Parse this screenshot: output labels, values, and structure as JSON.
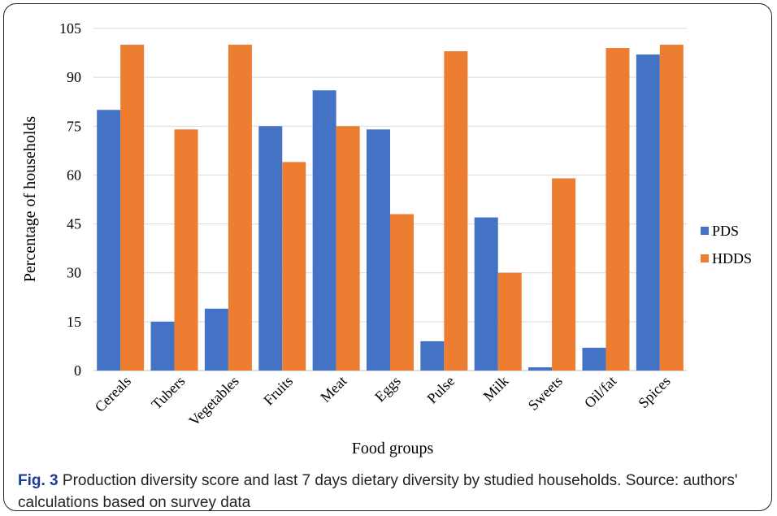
{
  "caption": {
    "label": "Fig. 3",
    "text": "Production diversity score and last 7 days dietary diversity by studied households. Source: authors' calculations based on survey data"
  },
  "chart_data": {
    "type": "bar",
    "categories": [
      "Cereals",
      "Tubers",
      "Vegetables",
      "Fruits",
      "Meat",
      "Eggs",
      "Pulse",
      "Milk",
      "Sweets",
      "Oil/fat",
      "Spices"
    ],
    "series": [
      {
        "name": "PDS",
        "color": "#4472C4",
        "values": [
          80,
          15,
          19,
          75,
          86,
          74,
          9,
          47,
          1,
          7,
          97
        ]
      },
      {
        "name": "HDDS",
        "color": "#ED7D31",
        "values": [
          100,
          74,
          100,
          64,
          75,
          48,
          98,
          30,
          59,
          99,
          100
        ]
      }
    ],
    "xlabel": "Food groups",
    "ylabel": "Percentage of households",
    "ylim": [
      0,
      105
    ],
    "yticks": [
      0,
      15,
      30,
      45,
      60,
      75,
      90,
      105
    ],
    "grid": true,
    "legend": "right",
    "gridline_color": "#D9D9D9"
  }
}
